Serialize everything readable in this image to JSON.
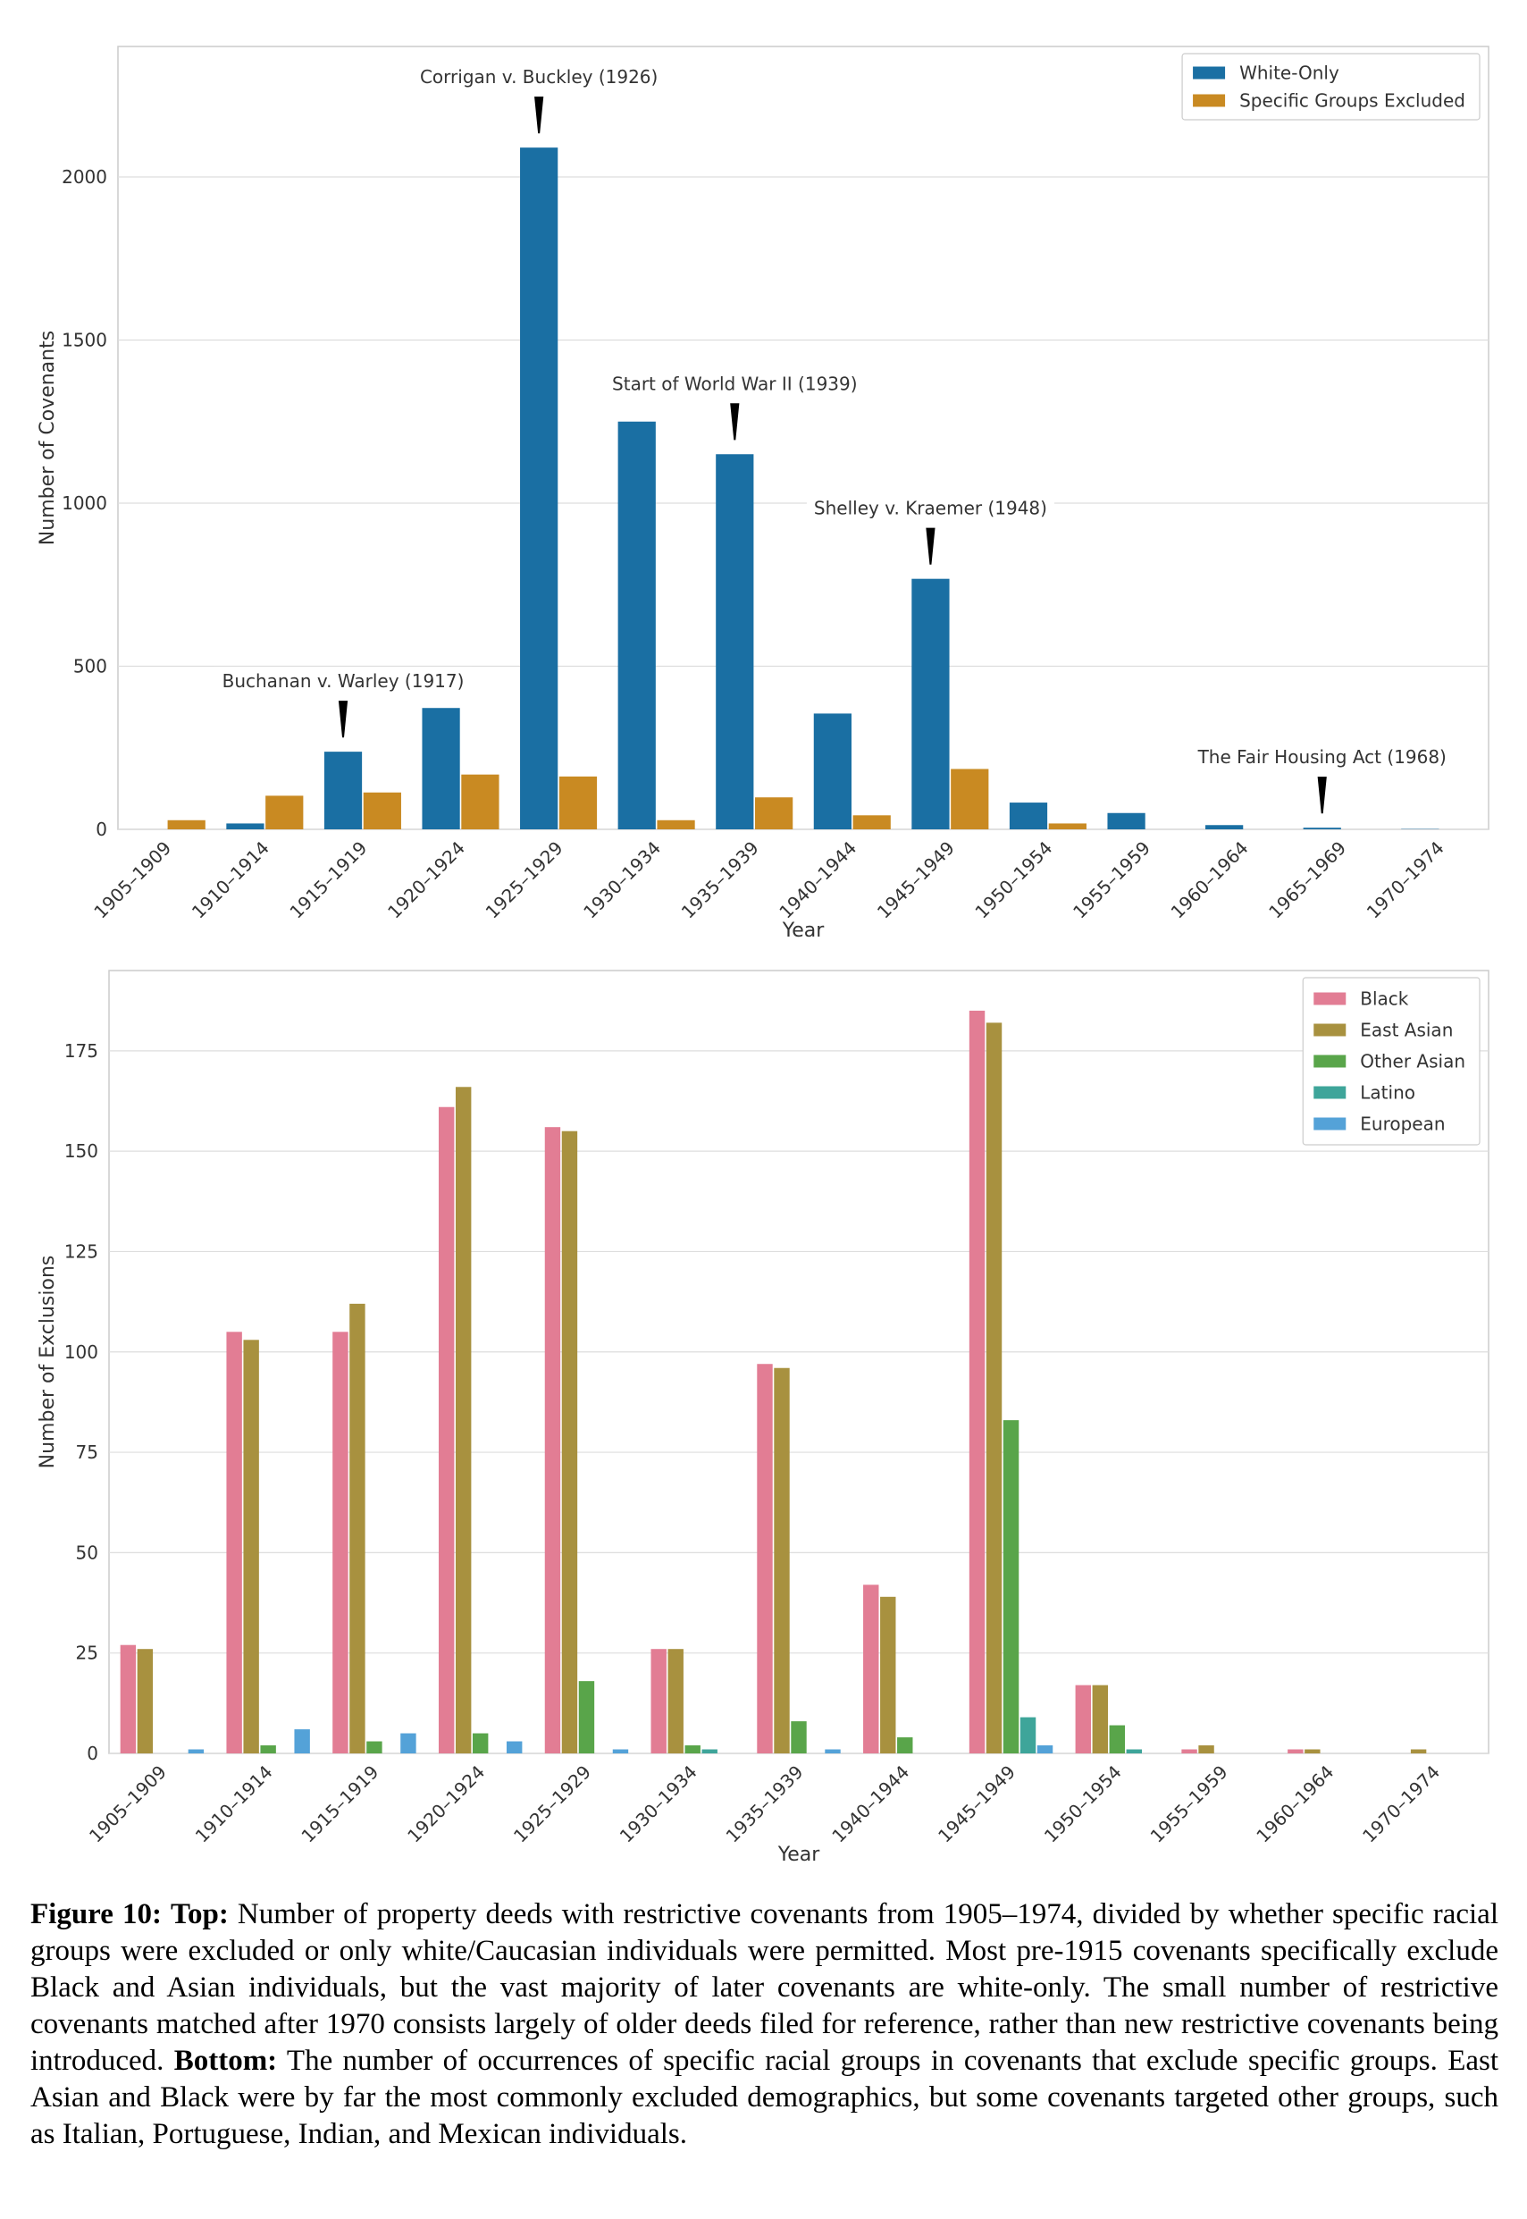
{
  "chart_data": [
    {
      "type": "bar",
      "xlabel": "Year",
      "ylabel": "Number of Covenants",
      "ylim": [
        0,
        2400
      ],
      "yticks": [
        0,
        500,
        1000,
        1500,
        2000
      ],
      "grid": true,
      "legend_position": "top-right",
      "categories": [
        "1905–1909",
        "1910–1914",
        "1915–1919",
        "1920–1924",
        "1925–1929",
        "1930–1934",
        "1935–1939",
        "1940–1944",
        "1945–1949",
        "1950–1954",
        "1955–1959",
        "1960–1964",
        "1965–1969",
        "1970–1974"
      ],
      "series": [
        {
          "name": "White-Only",
          "color": "#1a6fa3",
          "values": [
            0,
            18,
            238,
            372,
            2090,
            1250,
            1150,
            355,
            768,
            82,
            50,
            13,
            5,
            1
          ]
        },
        {
          "name": "Specific Groups Excluded",
          "color": "#c98a22",
          "values": [
            28,
            103,
            113,
            168,
            162,
            28,
            98,
            43,
            185,
            18,
            0,
            0,
            0,
            0
          ]
        }
      ],
      "annotations": [
        {
          "text": "Buchanan v. Warley (1917)",
          "category": "1915–1919",
          "series": "White-Only"
        },
        {
          "text": "Corrigan v. Buckley (1926)",
          "category": "1925–1929",
          "series": "White-Only"
        },
        {
          "text": "Start of World War II (1939)",
          "category": "1935–1939",
          "series": "White-Only"
        },
        {
          "text": "Shelley v. Kraemer (1948)",
          "category": "1945–1949",
          "series": "White-Only"
        },
        {
          "text": "The Fair Housing Act (1968)",
          "category": "1965–1969",
          "series": "White-Only"
        }
      ]
    },
    {
      "type": "bar",
      "xlabel": "Year",
      "ylabel": "Number of Exclusions",
      "ylim": [
        0,
        195
      ],
      "yticks": [
        0,
        25,
        50,
        75,
        100,
        125,
        150,
        175
      ],
      "grid": true,
      "legend_position": "top-right",
      "categories": [
        "1905–1909",
        "1910–1914",
        "1915–1919",
        "1920–1924",
        "1925–1929",
        "1930–1934",
        "1935–1939",
        "1940–1944",
        "1945–1949",
        "1950–1954",
        "1955–1959",
        "1960–1964",
        "1970–1974"
      ],
      "series": [
        {
          "name": "Black",
          "color": "#e27d94",
          "values": [
            27,
            105,
            105,
            161,
            156,
            26,
            97,
            42,
            185,
            17,
            1,
            1,
            0
          ]
        },
        {
          "name": "East Asian",
          "color": "#a8913f",
          "values": [
            26,
            103,
            112,
            166,
            155,
            26,
            96,
            39,
            182,
            17,
            2,
            1,
            1
          ]
        },
        {
          "name": "Other Asian",
          "color": "#59a54a",
          "values": [
            0,
            2,
            3,
            5,
            18,
            2,
            8,
            4,
            83,
            7,
            0,
            0,
            0
          ]
        },
        {
          "name": "Latino",
          "color": "#3ea59a",
          "values": [
            0,
            0,
            0,
            0,
            0,
            1,
            0,
            0,
            9,
            1,
            0,
            0,
            0
          ]
        },
        {
          "name": "European",
          "color": "#54a2d8",
          "values": [
            1,
            6,
            5,
            3,
            1,
            0,
            1,
            0,
            2,
            0,
            0,
            0,
            0
          ]
        }
      ]
    }
  ],
  "caption": {
    "figure_label": "Figure 10:",
    "top_label": "Top:",
    "top_text": "Number of property deeds with restrictive covenants from 1905–1974, divided by whether specific racial groups were excluded or only white/Caucasian individuals were permitted. Most pre-1915 covenants specifically exclude Black and Asian individuals, but the vast majority of later covenants are white-only. The small number of restrictive covenants matched after 1970 consists largely of older deeds filed for reference, rather than new restrictive covenants being introduced.",
    "bottom_label": "Bottom:",
    "bottom_text": "The number of occurrences of specific racial groups in covenants that exclude specific groups. East Asian and Black were by far the most commonly excluded demographics, but some covenants targeted other groups, such as Italian, Portuguese, Indian, and Mexican individuals."
  }
}
